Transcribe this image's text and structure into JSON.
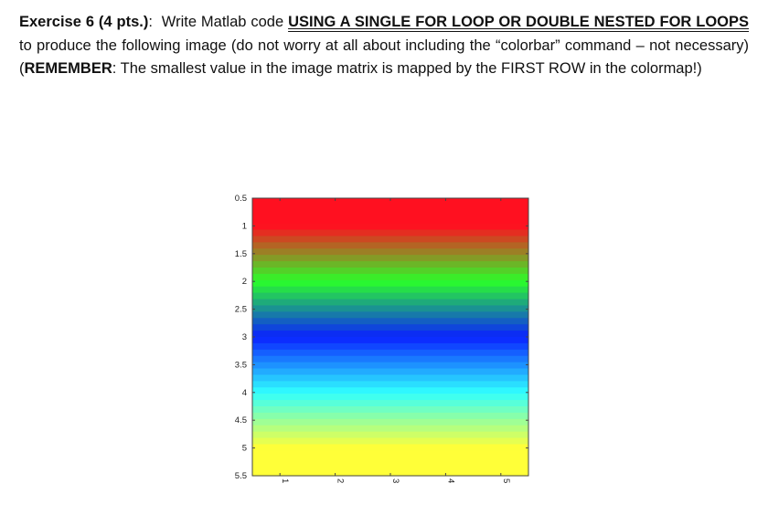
{
  "exercise": {
    "label": "Exercise 6 (4 pts.)",
    "colon": ":",
    "intro": "  Write Matlab code ",
    "emphasis1": "USING A SINGLE FOR LOOP OR DOUBLE NESTED FOR LOOPS",
    "body1": " to produce the following image (do not worry at all about including the “colorbar” command – not necessary) (",
    "remember": "REMEMBER",
    "body2": ":  The smallest value in the image matrix is mapped by the FIRST ROW in the colormap!)"
  },
  "chart_data": {
    "type": "heatmap",
    "rows": 5,
    "columns": 5,
    "row_colors": [
      "#ff1020",
      "#2aff2a",
      "#0a20ff",
      "#30ffff",
      "#ffff38"
    ],
    "shading": "interpolated between rows",
    "xlim": [
      0.5,
      5.5
    ],
    "ylim": [
      0.5,
      5.5
    ],
    "y_reversed": true,
    "xticks": [
      "1",
      "2",
      "3",
      "4",
      "5"
    ],
    "yticks": [
      "0.5",
      "1",
      "1.5",
      "2",
      "2.5",
      "3",
      "3.5",
      "4",
      "4.5",
      "5",
      "5.5"
    ]
  }
}
